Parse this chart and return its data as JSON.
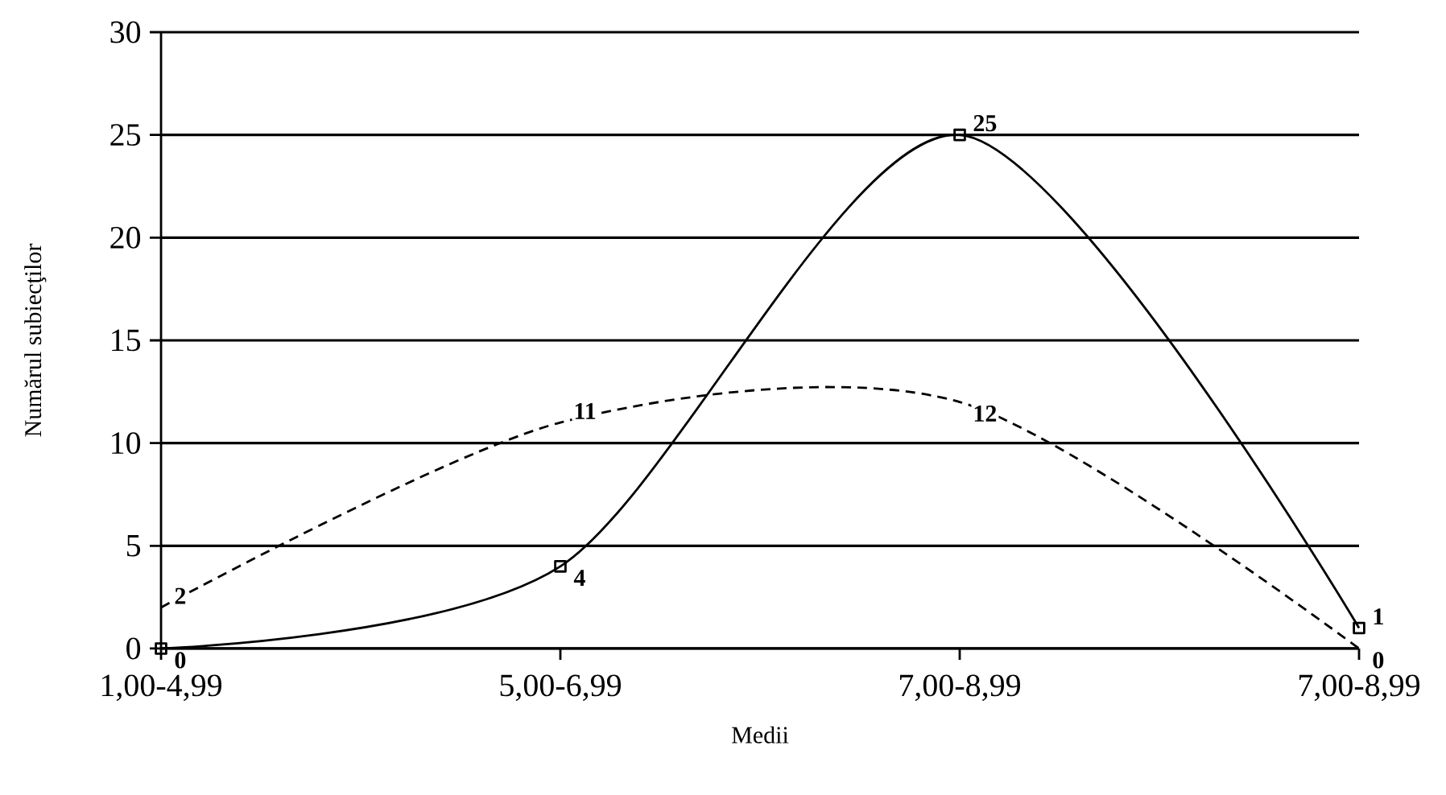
{
  "chart_data": {
    "type": "line",
    "xlabel": "Medii",
    "ylabel": "Numărul subiecţilor",
    "categories": [
      "1,00-4,99",
      "5,00-6,99",
      "7,00-8,99",
      "7,00-8,99"
    ],
    "series": [
      {
        "color": "#000000",
        "values": [
          0,
          4,
          25,
          1
        ],
        "marker": "square",
        "line_style": "solid"
      },
      {
        "color": "#000000",
        "values": [
          2,
          11,
          12,
          0
        ],
        "marker": "none",
        "line_style": "dashed"
      }
    ],
    "ylim": [
      0,
      30
    ],
    "yticks": [
      0,
      5,
      10,
      15,
      20,
      25,
      30
    ],
    "grid": "y",
    "data_labels": true
  }
}
